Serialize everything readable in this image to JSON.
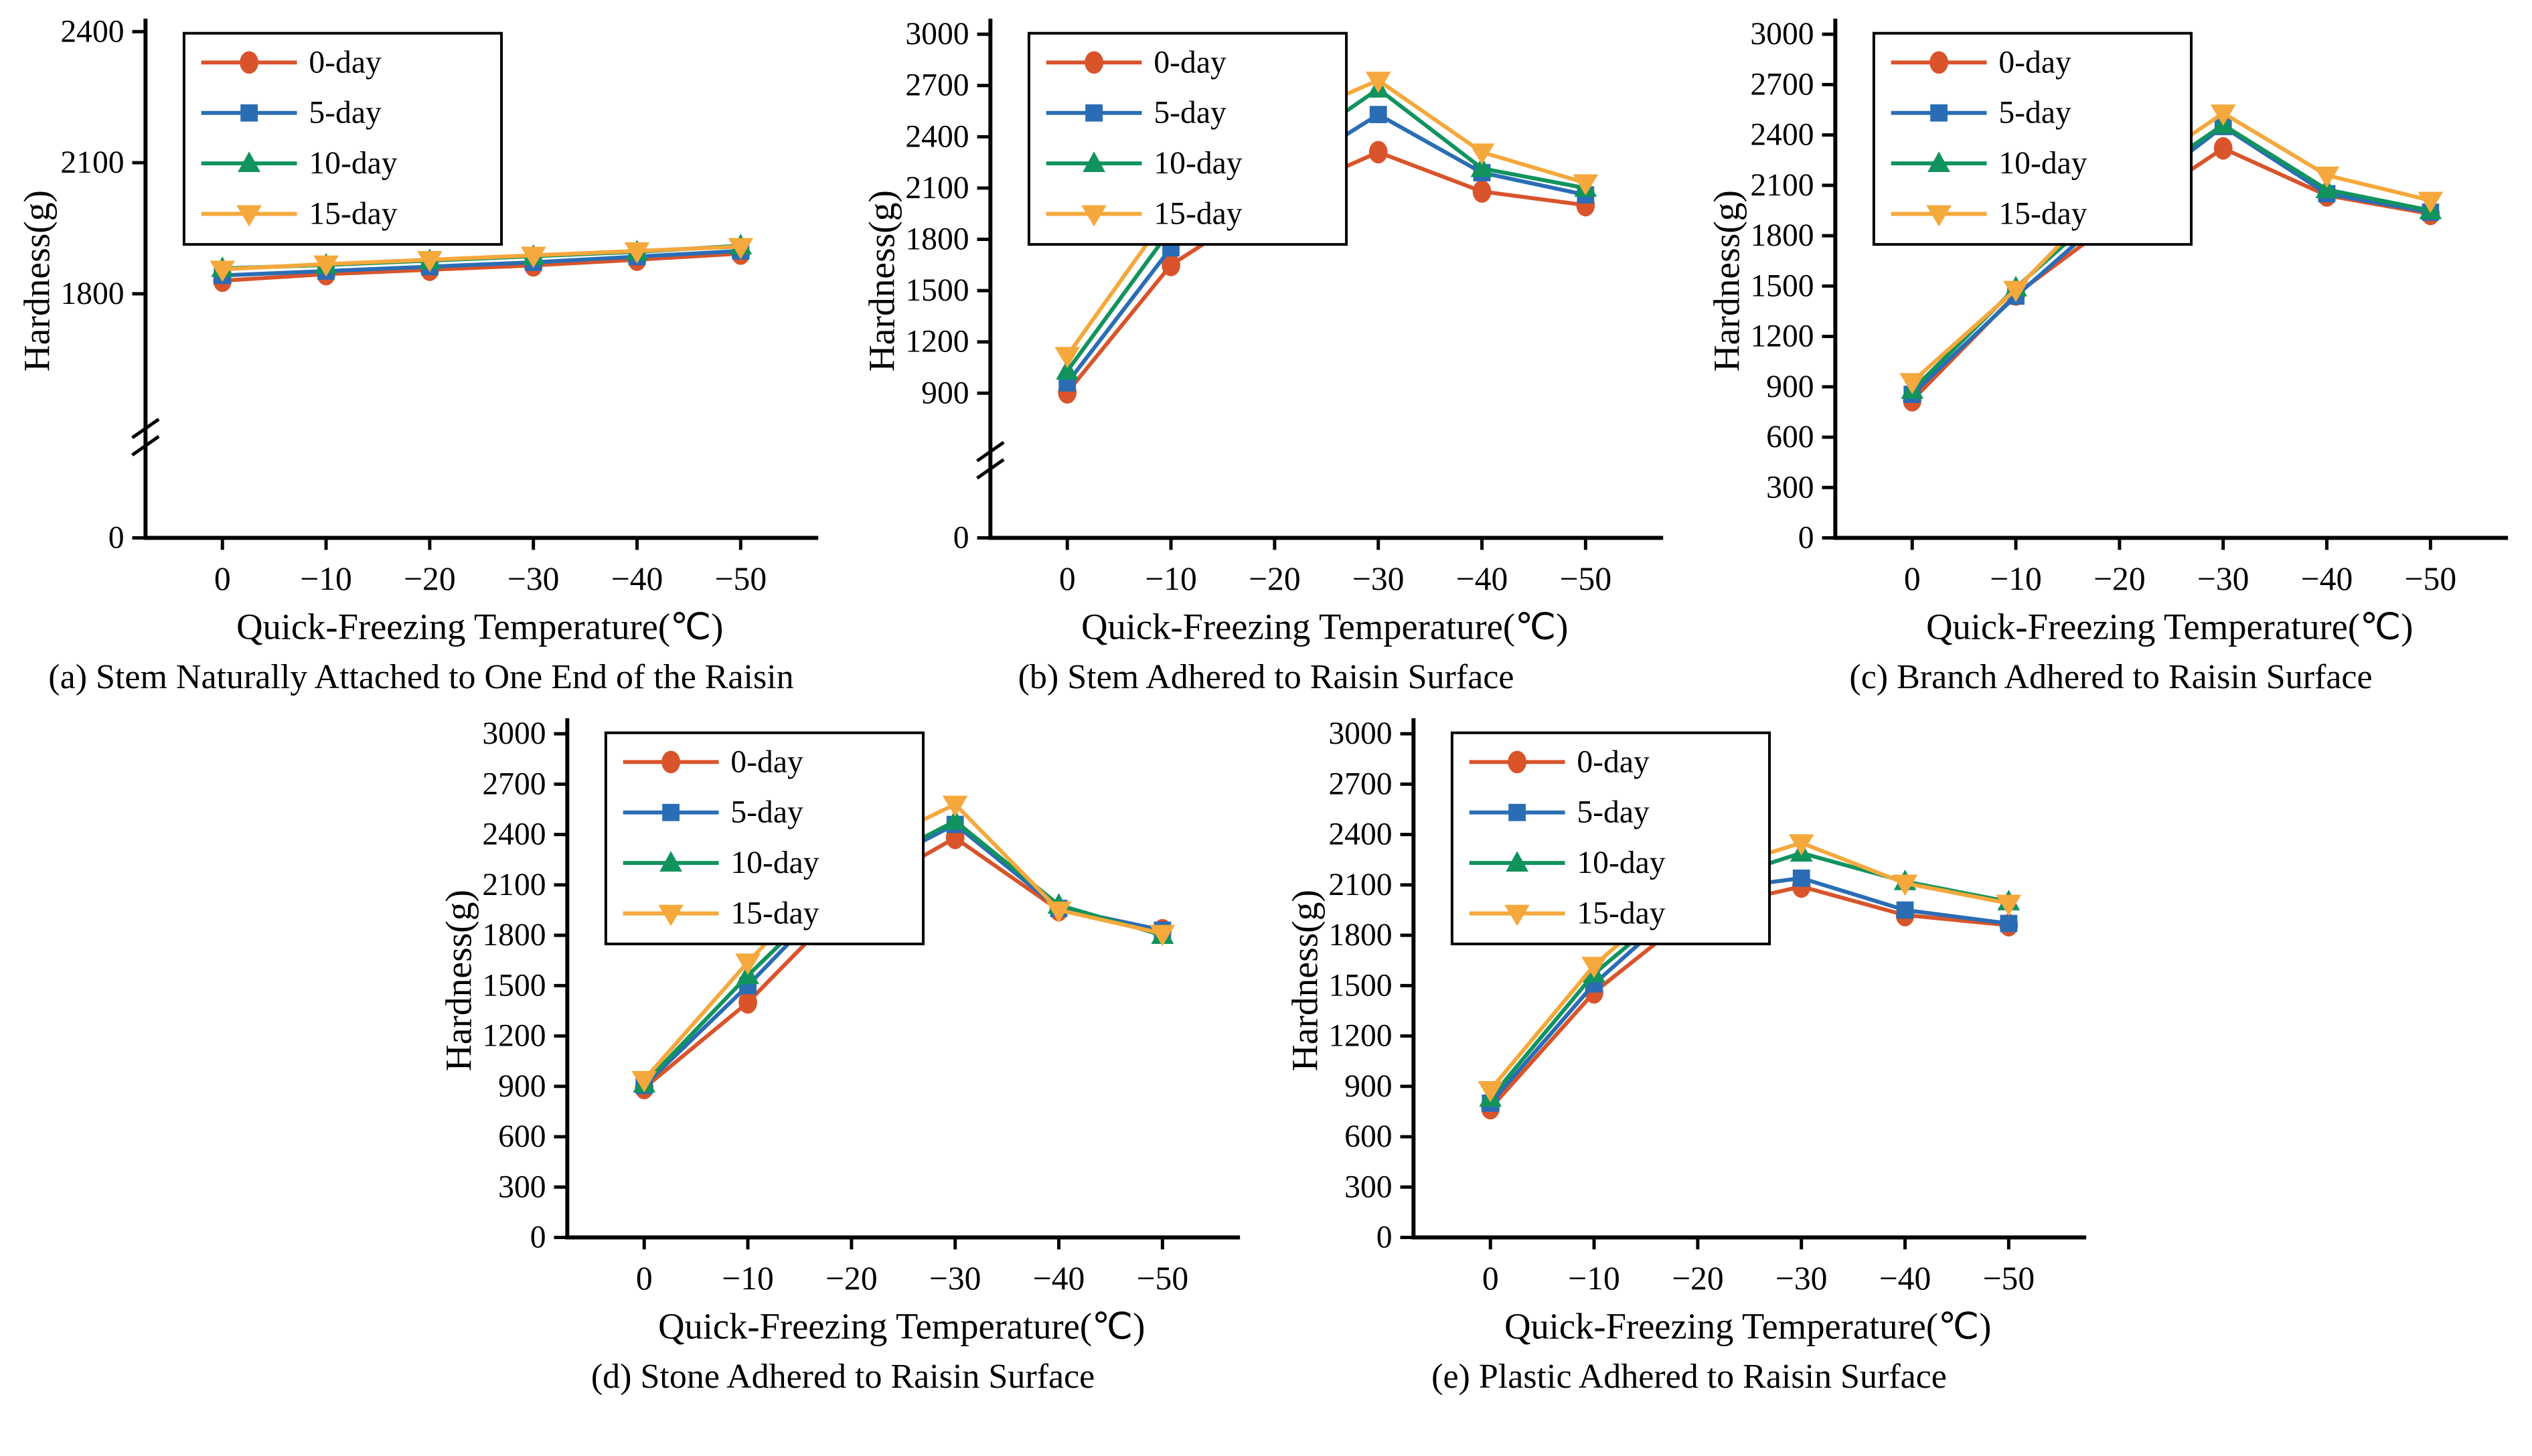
{
  "figure": {
    "ylabel": "Hardness(g)",
    "xlabel": "Quick-Freezing Temperature(℃)",
    "x_tick_labels": [
      "0",
      "−10",
      "−20",
      "−30",
      "−40",
      "−50"
    ],
    "legend_position": "upper-left",
    "legend": [
      {
        "label": "0-day",
        "color": "#d9542b",
        "marker": "circle"
      },
      {
        "label": "5-day",
        "color": "#2a6db5",
        "marker": "square"
      },
      {
        "label": "10-day",
        "color": "#11935e",
        "marker": "triangle-up"
      },
      {
        "label": "15-day",
        "color": "#f5a83c",
        "marker": "triangle-down"
      }
    ]
  },
  "chart_data": [
    {
      "id": "a",
      "type": "line",
      "caption": "(a) Stem Naturally Attached to One End of the Raisin",
      "xlabel": "Quick-Freezing Temperature(℃)",
      "ylabel": "Hardness(g)",
      "x_categories": [
        0,
        -10,
        -20,
        -30,
        -40,
        -50
      ],
      "axis_break": true,
      "break_f": 0.8,
      "grid": false,
      "y_ticks": [
        {
          "v": 2400,
          "label": "2400"
        },
        {
          "v": 2100,
          "label": "2100"
        },
        {
          "v": 1800,
          "label": "1800"
        },
        {
          "v": 0,
          "label": "0"
        }
      ],
      "y_segments": [
        {
          "v_lo": 1600,
          "v_hi": 2400,
          "f_lo": 0.695,
          "f_hi": 0.015
        },
        {
          "v_lo": 0,
          "v_hi": 0,
          "f_lo": 1.0,
          "f_hi": 1.0
        }
      ],
      "series": [
        {
          "name": "0-day",
          "values": [
            1830,
            1845,
            1855,
            1865,
            1878,
            1892
          ]
        },
        {
          "name": "5-day",
          "values": [
            1842,
            1852,
            1862,
            1872,
            1885,
            1898
          ]
        },
        {
          "name": "10-day",
          "values": [
            1858,
            1866,
            1876,
            1886,
            1896,
            1910
          ]
        },
        {
          "name": "15-day",
          "values": [
            1856,
            1868,
            1878,
            1888,
            1898,
            1908
          ]
        }
      ]
    },
    {
      "id": "b",
      "type": "line",
      "caption": "(b) Stem Adhered to Raisin Surface",
      "xlabel": "Quick-Freezing Temperature(℃)",
      "ylabel": "Hardness(g)",
      "x_categories": [
        0,
        -10,
        -20,
        -30,
        -40,
        -50
      ],
      "axis_break": true,
      "break_f": 0.845,
      "grid": false,
      "y_ticks": [
        {
          "v": 3000,
          "label": "3000"
        },
        {
          "v": 2700,
          "label": "2700"
        },
        {
          "v": 2400,
          "label": "2400"
        },
        {
          "v": 2100,
          "label": "2100"
        },
        {
          "v": 1800,
          "label": "1800"
        },
        {
          "v": 1500,
          "label": "1500"
        },
        {
          "v": 1200,
          "label": "1200"
        },
        {
          "v": 900,
          "label": "900"
        },
        {
          "v": 0,
          "label": "0"
        }
      ],
      "y_segments": [
        {
          "v_lo": 850,
          "v_hi": 3000,
          "f_lo": 0.735,
          "f_hi": 0.02
        },
        {
          "v_lo": 0,
          "v_hi": 0,
          "f_lo": 1.0,
          "f_hi": 1.0
        }
      ],
      "series": [
        {
          "name": "0-day",
          "values": [
            905,
            1650,
            2040,
            2310,
            2080,
            2000
          ]
        },
        {
          "name": "5-day",
          "values": [
            960,
            1750,
            2150,
            2530,
            2190,
            2060
          ]
        },
        {
          "name": "10-day",
          "values": [
            1030,
            1860,
            2260,
            2680,
            2215,
            2100
          ]
        },
        {
          "name": "15-day",
          "values": [
            1120,
            1970,
            2470,
            2730,
            2310,
            2130
          ]
        }
      ]
    },
    {
      "id": "c",
      "type": "line",
      "caption": "(c) Branch Adhered to Raisin Surface",
      "xlabel": "Quick-Freezing Temperature(℃)",
      "ylabel": "Hardness(g)",
      "x_categories": [
        0,
        -10,
        -20,
        -30,
        -40,
        -50
      ],
      "axis_break": false,
      "grid": false,
      "y_ticks": [
        {
          "v": 3000,
          "label": "3000"
        },
        {
          "v": 2700,
          "label": "2700"
        },
        {
          "v": 2400,
          "label": "2400"
        },
        {
          "v": 2100,
          "label": "2100"
        },
        {
          "v": 1800,
          "label": "1800"
        },
        {
          "v": 1500,
          "label": "1500"
        },
        {
          "v": 1200,
          "label": "1200"
        },
        {
          "v": 900,
          "label": "900"
        },
        {
          "v": 600,
          "label": "600"
        },
        {
          "v": 300,
          "label": "300"
        },
        {
          "v": 0,
          "label": "0"
        }
      ],
      "y_segments": [
        {
          "v_lo": 0,
          "v_hi": 3000,
          "f_lo": 1.0,
          "f_hi": 0.02
        }
      ],
      "series": [
        {
          "name": "0-day",
          "values": [
            820,
            1450,
            1910,
            2320,
            2040,
            1930
          ]
        },
        {
          "name": "5-day",
          "values": [
            855,
            1440,
            1980,
            2450,
            2050,
            1940
          ]
        },
        {
          "name": "10-day",
          "values": [
            880,
            1490,
            2040,
            2460,
            2075,
            1950
          ]
        },
        {
          "name": "15-day",
          "values": [
            930,
            1480,
            2110,
            2530,
            2160,
            2010
          ]
        }
      ]
    },
    {
      "id": "d",
      "type": "line",
      "caption": "(d) Stone Adhered to Raisin Surface",
      "xlabel": "Quick-Freezing Temperature(℃)",
      "ylabel": "Hardness(g)",
      "x_categories": [
        0,
        -10,
        -20,
        -30,
        -40,
        -50
      ],
      "axis_break": false,
      "grid": false,
      "y_ticks": [
        {
          "v": 3000,
          "label": "3000"
        },
        {
          "v": 2700,
          "label": "2700"
        },
        {
          "v": 2400,
          "label": "2400"
        },
        {
          "v": 2100,
          "label": "2100"
        },
        {
          "v": 1800,
          "label": "1800"
        },
        {
          "v": 1500,
          "label": "1500"
        },
        {
          "v": 1200,
          "label": "1200"
        },
        {
          "v": 900,
          "label": "900"
        },
        {
          "v": 600,
          "label": "600"
        },
        {
          "v": 300,
          "label": "300"
        },
        {
          "v": 0,
          "label": "0"
        }
      ],
      "y_segments": [
        {
          "v_lo": 0,
          "v_hi": 3000,
          "f_lo": 1.0,
          "f_hi": 0.02
        }
      ],
      "series": [
        {
          "name": "0-day",
          "values": [
            890,
            1400,
            2030,
            2380,
            1950,
            1830
          ]
        },
        {
          "name": "5-day",
          "values": [
            905,
            1500,
            2140,
            2460,
            1960,
            1830
          ]
        },
        {
          "name": "10-day",
          "values": [
            915,
            1560,
            2160,
            2480,
            1980,
            1800
          ]
        },
        {
          "name": "15-day",
          "values": [
            940,
            1640,
            2280,
            2580,
            1950,
            1810
          ]
        }
      ]
    },
    {
      "id": "e",
      "type": "line",
      "caption": "(e) Plastic Adhered to Raisin Surface",
      "xlabel": "Quick-Freezing Temperature(℃)",
      "ylabel": "Hardness(g)",
      "x_categories": [
        0,
        -10,
        -20,
        -30,
        -40,
        -50
      ],
      "axis_break": false,
      "grid": false,
      "y_ticks": [
        {
          "v": 3000,
          "label": "3000"
        },
        {
          "v": 2700,
          "label": "2700"
        },
        {
          "v": 2400,
          "label": "2400"
        },
        {
          "v": 2100,
          "label": "2100"
        },
        {
          "v": 1800,
          "label": "1800"
        },
        {
          "v": 1500,
          "label": "1500"
        },
        {
          "v": 1200,
          "label": "1200"
        },
        {
          "v": 900,
          "label": "900"
        },
        {
          "v": 600,
          "label": "600"
        },
        {
          "v": 300,
          "label": "300"
        },
        {
          "v": 0,
          "label": "0"
        }
      ],
      "y_segments": [
        {
          "v_lo": 0,
          "v_hi": 3000,
          "f_lo": 1.0,
          "f_hi": 0.02
        }
      ],
      "series": [
        {
          "name": "0-day",
          "values": [
            770,
            1460,
            1950,
            2090,
            1920,
            1860
          ]
        },
        {
          "name": "5-day",
          "values": [
            800,
            1510,
            2060,
            2140,
            1950,
            1870
          ]
        },
        {
          "name": "10-day",
          "values": [
            830,
            1570,
            2090,
            2290,
            2120,
            2000
          ]
        },
        {
          "name": "15-day",
          "values": [
            880,
            1620,
            2160,
            2350,
            2110,
            1990
          ]
        }
      ]
    }
  ]
}
